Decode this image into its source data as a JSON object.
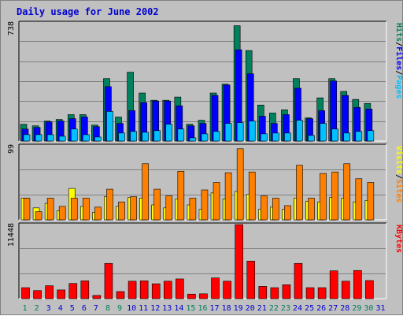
{
  "title": "Daily usage for June 2002",
  "colors": {
    "hits": "#00805c",
    "files": "#0000ff",
    "pages": "#00c0ff",
    "visits": "#ffff00",
    "sites": "#ff8000",
    "kbytes": "#ff0000",
    "title": "#0000d0",
    "weekend_day": "#00805c",
    "weekday": "#0000d0",
    "background": "#c0c0c0",
    "gridline": "#808080"
  },
  "chart_data": [
    {
      "type": "bar",
      "name": "hits-files-pages",
      "ymax_label": "738",
      "ylim": [
        0,
        738
      ],
      "legend": [
        "Pages",
        "Files",
        "Hits"
      ],
      "categories": [
        "1",
        "2",
        "3",
        "4",
        "5",
        "6",
        "7",
        "8",
        "9",
        "10",
        "11",
        "12",
        "13",
        "14",
        "15",
        "16",
        "17",
        "18",
        "19",
        "20",
        "21",
        "22",
        "23",
        "24",
        "25",
        "26",
        "27",
        "28",
        "29",
        "30",
        "31"
      ],
      "weekend_days": [
        1,
        2,
        8,
        9,
        15,
        16,
        22,
        23,
        29,
        30
      ],
      "series": [
        {
          "name": "Hits",
          "values": [
            105,
            95,
            125,
            135,
            165,
            165,
            100,
            390,
            150,
            430,
            300,
            255,
            255,
            275,
            105,
            130,
            300,
            355,
            720,
            565,
            225,
            175,
            195,
            390,
            145,
            270,
            390,
            310,
            260,
            235,
            0
          ]
        },
        {
          "name": "Files",
          "values": [
            75,
            85,
            120,
            125,
            140,
            150,
            90,
            340,
            110,
            190,
            240,
            250,
            250,
            220,
            95,
            110,
            285,
            350,
            570,
            420,
            155,
            110,
            165,
            330,
            140,
            190,
            375,
            285,
            210,
            200,
            0
          ]
        },
        {
          "name": "Pages",
          "values": [
            40,
            40,
            40,
            30,
            75,
            40,
            25,
            185,
            50,
            60,
            55,
            65,
            105,
            75,
            20,
            45,
            60,
            110,
            115,
            125,
            45,
            50,
            50,
            130,
            35,
            110,
            75,
            50,
            60,
            65,
            0
          ]
        }
      ]
    },
    {
      "type": "bar",
      "name": "visits-sites",
      "ymax_label": "99",
      "ylim": [
        0,
        99
      ],
      "legend": [
        "Sites",
        "Visits"
      ],
      "categories": [
        "1",
        "2",
        "3",
        "4",
        "5",
        "6",
        "7",
        "8",
        "9",
        "10",
        "11",
        "12",
        "13",
        "14",
        "15",
        "16",
        "17",
        "18",
        "19",
        "20",
        "21",
        "22",
        "23",
        "24",
        "25",
        "26",
        "27",
        "28",
        "29",
        "30",
        "31"
      ],
      "series": [
        {
          "name": "Visits",
          "values": [
            29,
            16,
            22,
            12,
            42,
            18,
            10,
            31,
            18,
            30,
            29,
            20,
            16,
            28,
            20,
            14,
            36,
            28,
            38,
            34,
            14,
            17,
            14,
            29,
            25,
            24,
            30,
            29,
            24,
            26,
            0
          ]
        },
        {
          "name": "Sites",
          "values": [
            29,
            11,
            29,
            18,
            29,
            29,
            17,
            41,
            24,
            31,
            75,
            41,
            32,
            65,
            29,
            40,
            50,
            63,
            95,
            64,
            32,
            29,
            19,
            73,
            29,
            62,
            64,
            75,
            55,
            50,
            0
          ]
        }
      ]
    },
    {
      "type": "bar",
      "name": "kbytes",
      "ymax_label": "11448",
      "ylim": [
        0,
        11448
      ],
      "legend": [
        "KBytes"
      ],
      "categories": [
        "1",
        "2",
        "3",
        "4",
        "5",
        "6",
        "7",
        "8",
        "9",
        "10",
        "11",
        "12",
        "13",
        "14",
        "15",
        "16",
        "17",
        "18",
        "19",
        "20",
        "21",
        "22",
        "23",
        "24",
        "25",
        "26",
        "27",
        "28",
        "29",
        "30",
        "31"
      ],
      "series": [
        {
          "name": "KBytes",
          "values": [
            1700,
            1250,
            2000,
            1350,
            2350,
            2750,
            500,
            5450,
            1100,
            2700,
            2750,
            2300,
            2700,
            3050,
            700,
            750,
            3200,
            2700,
            11448,
            5800,
            1900,
            1700,
            2150,
            5450,
            1700,
            1700,
            4300,
            2700,
            4350,
            2800,
            0
          ]
        }
      ]
    }
  ]
}
